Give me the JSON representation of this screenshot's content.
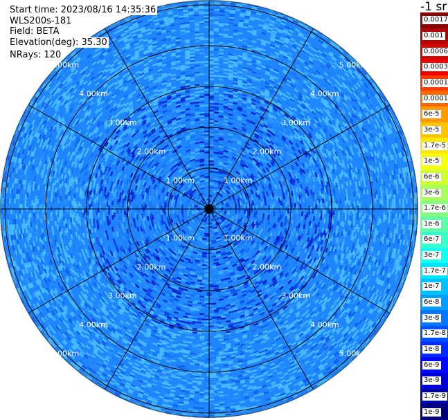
{
  "header": {
    "start_time": "Start time: 2023/08/16 14:35:36",
    "instrument": "WLS200s-181",
    "field": "Field: BETA",
    "elevation": "Elevation(deg): 35.30",
    "nrays": "NRays: 120"
  },
  "units_label": "-1 sr",
  "range_labels": [
    "1.00km",
    "2.00km",
    "3.00km",
    "4.00km",
    "5.00km"
  ],
  "colorbar": {
    "labels": [
      "0.0017",
      "0.001",
      "0.0006",
      "0.0003",
      "0.00017",
      "0.0001",
      "6e-5",
      "3e-5",
      "1.7e-5",
      "1e-5",
      "6e-6",
      "3e-6",
      "1.7e-6",
      "1e-6",
      "6e-7",
      "3e-7",
      "1.7e-7",
      "1e-7",
      "6e-8",
      "3e-8",
      "1.7e-8",
      "1e-8",
      "6e-9",
      "3e-9",
      "1.7e-9",
      "1e-9"
    ],
    "colors": [
      "#8b0000",
      "#b00000",
      "#d40000",
      "#f20000",
      "#ff3a00",
      "#ff6a00",
      "#ff9a00",
      "#ffc400",
      "#ffe800",
      "#f5ff10",
      "#d2ff34",
      "#aaff5c",
      "#86ff80",
      "#5effa8",
      "#3affcc",
      "#14fff0",
      "#00e4ff",
      "#00c0ff",
      "#009cff",
      "#0078ff",
      "#0050ff",
      "#002cff",
      "#0008ff",
      "#0000d6",
      "#0000a8",
      "#00007a"
    ]
  }
}
